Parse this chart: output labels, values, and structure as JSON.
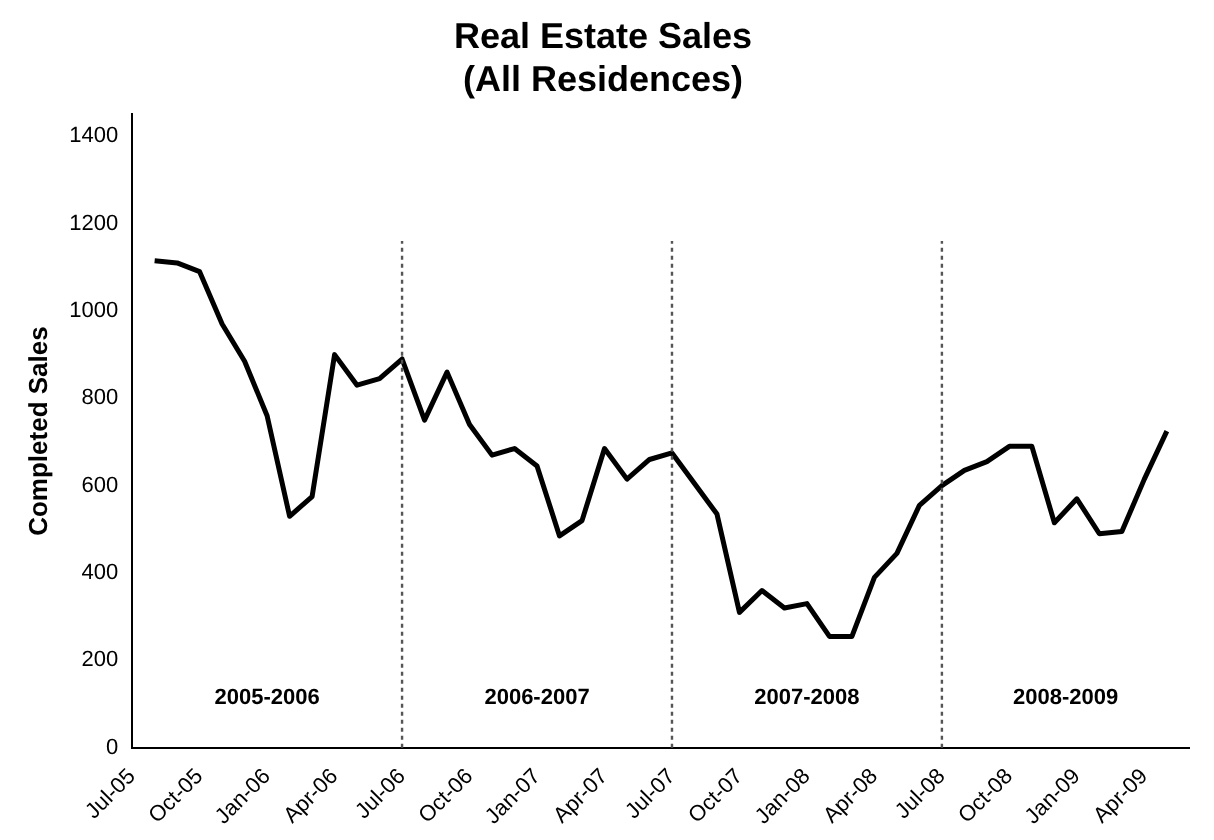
{
  "chart_data": {
    "type": "line",
    "title": "Real Estate Sales",
    "subtitle": "(All Residences)",
    "ylabel": "Completed Sales",
    "categories": [
      "Jul-05",
      null,
      null,
      "Oct-05",
      null,
      null,
      "Jan-06",
      null,
      null,
      "Apr-06",
      null,
      null,
      "Jul-06",
      null,
      null,
      "Oct-06",
      null,
      null,
      "Jan-07",
      null,
      null,
      "Apr-07",
      null,
      null,
      "Jul-07",
      null,
      null,
      "Oct-07",
      null,
      null,
      "Jan-08",
      null,
      null,
      "Apr-08",
      null,
      null,
      "Jul-08",
      null,
      null,
      "Oct-08",
      null,
      null,
      "Jan-09",
      null,
      null,
      "Apr-09",
      null,
      null
    ],
    "series": [
      {
        "color": "#000000",
        "values": [
          null,
          1115,
          1110,
          1090,
          970,
          885,
          760,
          530,
          575,
          900,
          830,
          845,
          890,
          750,
          860,
          740,
          670,
          685,
          645,
          485,
          520,
          685,
          615,
          660,
          675,
          605,
          535,
          310,
          360,
          320,
          330,
          255,
          255,
          390,
          445,
          555,
          600,
          635,
          655,
          690,
          690,
          515,
          570,
          490,
          495,
          615,
          725,
          null
        ]
      }
    ],
    "ylim": [
      0,
      1450
    ],
    "yticks": [
      0,
      200,
      400,
      600,
      800,
      1000,
      1200,
      1400
    ],
    "grid": false,
    "legend": false,
    "marker": "none",
    "line_style": "solid",
    "ref_lines": [
      {
        "axis": "x",
        "value": "Jul-06",
        "color": "#555555",
        "line_style": "dotted"
      },
      {
        "axis": "x",
        "value": "Jul-07",
        "color": "#555555",
        "line_style": "dotted"
      },
      {
        "axis": "x",
        "value": "Jul-08",
        "color": "#555555",
        "line_style": "dotted"
      }
    ],
    "annotations": [
      "2005-2006",
      "2006-2007",
      "2007-2008",
      "2008-2009"
    ]
  }
}
